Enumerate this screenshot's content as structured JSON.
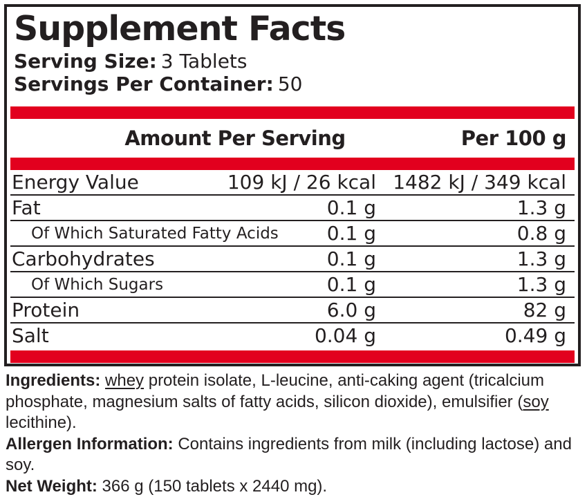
{
  "title": "Supplement Facts",
  "serving": {
    "size_label": "Serving Size:",
    "size_value": "3 Tablets",
    "container_label": "Servings Per Container:",
    "container_value": "50"
  },
  "table": {
    "col_amount": "Amount Per Serving",
    "col_per100": "Per 100 g",
    "rows": [
      {
        "name": "Energy Value",
        "amount": "109 kJ / 26 kcal",
        "per100": "1482 kJ / 349 kcal",
        "sub": false
      },
      {
        "name": "Fat",
        "amount": "0.1 g",
        "per100": "1.3 g",
        "sub": false
      },
      {
        "name": "Of Which Saturated Fatty Acids",
        "amount": "0.1 g",
        "per100": "0.8 g",
        "sub": true
      },
      {
        "name": "Carbohydrates",
        "amount": "0.1 g",
        "per100": "1.3 g",
        "sub": false
      },
      {
        "name": "Of Which Sugars",
        "amount": "0.1 g",
        "per100": "1.3 g",
        "sub": true
      },
      {
        "name": "Protein",
        "amount": "6.0 g",
        "per100": "82 g",
        "sub": false
      },
      {
        "name": "Salt",
        "amount": "0.04 g",
        "per100": "0.49 g",
        "sub": false
      }
    ]
  },
  "footer": {
    "ingredients_label": "Ingredients:",
    "ingredients_segments": [
      {
        "text": " ",
        "underline": false
      },
      {
        "text": "whey",
        "underline": true
      },
      {
        "text": " protein isolate, L-leucine, anti-caking agent (tricalcium phosphate, magnesium salts of fatty acids, silicon dioxide), emulsifier (",
        "underline": false
      },
      {
        "text": "soy",
        "underline": true
      },
      {
        "text": " lecithine).",
        "underline": false
      }
    ],
    "allergen_label": "Allergen Information:",
    "allergen_text": " Contains ingredients from milk (including lactose) and soy.",
    "net_weight_label": "Net Weight:",
    "net_weight_text": " 366 g (150 tablets x 2440 mg)."
  },
  "colors": {
    "accent_red": "#e2001e",
    "text_black": "#231f20"
  }
}
